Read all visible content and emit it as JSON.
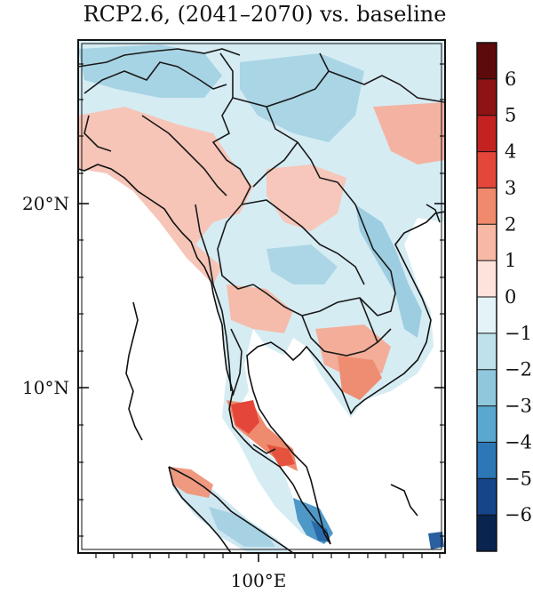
{
  "title": "RCP2.6, (2041–2070) vs. baseline",
  "axes": {
    "y_ticks": [
      {
        "label": "20°N",
        "value": 20
      },
      {
        "label": "10°N",
        "value": 10
      }
    ],
    "x_ticks": [
      {
        "label": "100°E",
        "value": 100
      }
    ]
  },
  "colorbar": {
    "labels": [
      "6",
      "5",
      "4",
      "3",
      "2",
      "1",
      "0",
      "−1",
      "−2",
      "−3",
      "−4",
      "−5",
      "−6"
    ],
    "colors": [
      "#5c0a0a",
      "#8e1414",
      "#c42121",
      "#e5463a",
      "#f08a6c",
      "#f7b8a4",
      "#fde3dc",
      "#e4f3f7",
      "#bfe1ec",
      "#8fc8dc",
      "#5aa8cf",
      "#2d77b6",
      "#16468a",
      "#0a2450"
    ]
  },
  "map": {
    "region": "Mainland Southeast Asia",
    "field": "change vs. baseline",
    "palette": {
      "warm": "#f5b5a5",
      "warm_strong": "#e94836",
      "cool": "#a9d6e6",
      "cool_strong": "#3f88c2",
      "neutral": "#e4f3f7"
    }
  }
}
